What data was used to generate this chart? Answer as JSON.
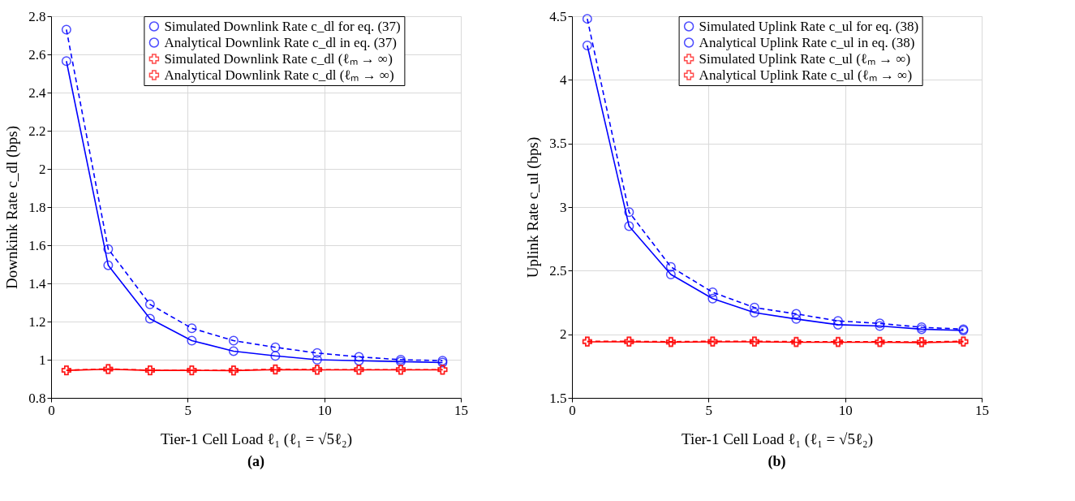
{
  "chart_data": [
    {
      "type": "line",
      "title": "(a)",
      "xlabel": "Tier-1 Cell Load ℓ₁ (ℓ₁ = √5ℓ₂)",
      "ylabel": "Downkink Rate c_dl (bps)",
      "x": [
        0.56,
        2.09,
        3.62,
        5.15,
        6.68,
        8.21,
        9.74,
        11.27,
        12.8,
        14.33
      ],
      "xlim": [
        0,
        15
      ],
      "xticks": [
        0,
        5,
        10,
        15
      ],
      "ylim": [
        0.8,
        2.8
      ],
      "yticks": [
        0.8,
        1,
        1.2,
        1.4,
        1.6,
        1.8,
        2,
        2.2,
        2.4,
        2.6,
        2.8
      ],
      "grid": true,
      "legend": "top right",
      "series": [
        {
          "name": "Simulated Downlink Rate c_dl for eq. (37)",
          "color": "#0000ff",
          "marker": "circle",
          "line_style": "dashed",
          "values": [
            2.73,
            1.58,
            1.29,
            1.165,
            1.1,
            1.065,
            1.035,
            1.015,
            1.0,
            0.995
          ]
        },
        {
          "name": "Analytical Downlink Rate c_dl in eq. (37)",
          "color": "#0000ff",
          "marker": "circle",
          "line_style": "solid",
          "values": [
            2.565,
            1.495,
            1.215,
            1.1,
            1.045,
            1.02,
            1.0,
            0.995,
            0.99,
            0.985
          ]
        },
        {
          "name": "Simulated Downlink Rate c_dl (ℓₘ → ∞)",
          "color": "#ff0000",
          "marker": "cross",
          "line_style": "dashed",
          "values": [
            0.945,
            0.952,
            0.945,
            0.945,
            0.945,
            0.95,
            0.948,
            0.948,
            0.948,
            0.948
          ]
        },
        {
          "name": "Analytical Downlink Rate c_dl (ℓₘ → ∞)",
          "color": "#ff0000",
          "marker": "cross",
          "line_style": "solid",
          "values": [
            0.944,
            0.95,
            0.944,
            0.944,
            0.943,
            0.948,
            0.947,
            0.947,
            0.947,
            0.947
          ]
        }
      ]
    },
    {
      "type": "line",
      "title": "(b)",
      "xlabel": "Tier-1 Cell Load ℓ₁ (ℓ₁ = √5ℓ₂)",
      "ylabel": "Uplink Rate c_ul (bps)",
      "x": [
        0.56,
        2.09,
        3.62,
        5.15,
        6.68,
        8.21,
        9.74,
        11.27,
        12.8,
        14.33
      ],
      "xlim": [
        0,
        15
      ],
      "xticks": [
        0,
        5,
        10,
        15
      ],
      "ylim": [
        1.5,
        4.5
      ],
      "yticks": [
        1.5,
        2,
        2.5,
        3,
        3.5,
        4,
        4.5
      ],
      "grid": true,
      "legend": "top right",
      "series": [
        {
          "name": "Simulated Uplink Rate c_ul for eq. (38)",
          "color": "#0000ff",
          "marker": "circle",
          "line_style": "dashed",
          "values": [
            4.48,
            2.96,
            2.53,
            2.33,
            2.21,
            2.16,
            2.105,
            2.085,
            2.055,
            2.04
          ]
        },
        {
          "name": "Analytical Uplink Rate c_ul in eq. (38)",
          "color": "#0000ff",
          "marker": "circle",
          "line_style": "solid",
          "values": [
            4.27,
            2.85,
            2.47,
            2.28,
            2.17,
            2.12,
            2.075,
            2.065,
            2.04,
            2.03
          ]
        },
        {
          "name": "Simulated Uplink Rate c_ul (ℓₘ → ∞)",
          "color": "#ff0000",
          "marker": "cross",
          "line_style": "dashed",
          "values": [
            1.945,
            1.945,
            1.942,
            1.945,
            1.945,
            1.942,
            1.942,
            1.942,
            1.94,
            1.945
          ]
        },
        {
          "name": "Analytical Uplink Rate c_ul (ℓₘ → ∞)",
          "color": "#ff0000",
          "marker": "cross",
          "line_style": "solid",
          "values": [
            1.94,
            1.94,
            1.937,
            1.94,
            1.94,
            1.937,
            1.937,
            1.937,
            1.935,
            1.94
          ]
        }
      ]
    }
  ]
}
